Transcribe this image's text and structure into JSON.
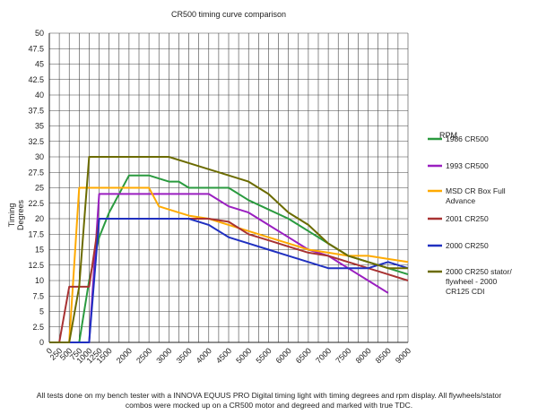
{
  "chart_data": {
    "type": "line",
    "title": "CR500 timing curve comparison",
    "xlabel": "RPM",
    "ylabel": "Timing Degrees",
    "xlim": [
      0,
      9000
    ],
    "ylim": [
      0,
      50
    ],
    "x": [
      0,
      250,
      500,
      750,
      1000,
      1250,
      1500,
      2000,
      2500,
      3000,
      3500,
      4000,
      4500,
      5000,
      5500,
      6000,
      6500,
      7000,
      7500,
      8000,
      8500,
      9000
    ],
    "x_tick_labels": [
      "0",
      "250",
      "500",
      "750",
      "1000",
      "1250",
      "1500",
      "2000",
      "2500",
      "3000",
      "3500",
      "4000",
      "4500",
      "5000",
      "5500",
      "6000",
      "6500",
      "7000",
      "7500",
      "8000",
      "8500",
      "9000"
    ],
    "y_ticks": [
      0,
      2.5,
      5,
      7.5,
      10,
      12.5,
      15,
      17.5,
      20,
      22.5,
      25,
      27.5,
      30,
      32.5,
      35,
      37.5,
      40,
      42.5,
      45,
      47.5,
      50
    ],
    "y_tick_labels": [
      "0",
      "2.5",
      "5",
      "7.5",
      "10",
      "12.5",
      "15",
      "17.5",
      "20",
      "22.5",
      "25",
      "27.5",
      "30",
      "32.5",
      "35",
      "37.5",
      "40",
      "42.5",
      "45",
      "47.5",
      "50"
    ],
    "grid": true,
    "legend_position": "right",
    "series": [
      {
        "name": "1986 CR500",
        "color": "#2a9a3f",
        "points": [
          [
            0,
            0
          ],
          [
            750,
            0
          ],
          [
            1000,
            10
          ],
          [
            1250,
            17
          ],
          [
            1500,
            21
          ],
          [
            2000,
            27
          ],
          [
            2500,
            27
          ],
          [
            3000,
            26
          ],
          [
            3250,
            26
          ],
          [
            3500,
            25
          ],
          [
            4000,
            25
          ],
          [
            4500,
            25
          ],
          [
            5000,
            23
          ],
          [
            5500,
            21.5
          ],
          [
            6000,
            20
          ],
          [
            6500,
            18
          ],
          [
            7000,
            16
          ],
          [
            7500,
            14
          ],
          [
            8000,
            13
          ],
          [
            8500,
            12
          ],
          [
            9000,
            11
          ]
        ]
      },
      {
        "name": "1993 CR500",
        "color": "#9a1fc0",
        "points": [
          [
            0,
            0
          ],
          [
            1000,
            0
          ],
          [
            1250,
            24
          ],
          [
            2000,
            24
          ],
          [
            2500,
            24
          ],
          [
            3000,
            24
          ],
          [
            3500,
            24
          ],
          [
            4000,
            24
          ],
          [
            4500,
            22
          ],
          [
            5000,
            21
          ],
          [
            5500,
            19
          ],
          [
            6000,
            17
          ],
          [
            6500,
            15
          ],
          [
            7000,
            14
          ],
          [
            7500,
            12
          ],
          [
            8000,
            10
          ],
          [
            8500,
            8
          ]
        ]
      },
      {
        "name": "MSD CR Box Full Advance",
        "color": "#ffaa00",
        "points": [
          [
            0,
            0
          ],
          [
            500,
            0
          ],
          [
            750,
            25
          ],
          [
            1000,
            25
          ],
          [
            1250,
            25
          ],
          [
            2000,
            25
          ],
          [
            2500,
            25
          ],
          [
            2750,
            22
          ],
          [
            3000,
            21.5
          ],
          [
            3500,
            20.5
          ],
          [
            4000,
            20
          ],
          [
            4500,
            19
          ],
          [
            5000,
            18
          ],
          [
            5500,
            17
          ],
          [
            6000,
            16
          ],
          [
            6500,
            15
          ],
          [
            7000,
            14.5
          ],
          [
            7500,
            14
          ],
          [
            8000,
            14
          ],
          [
            8500,
            13.5
          ],
          [
            9000,
            13
          ]
        ]
      },
      {
        "name": "2001 CR250",
        "color": "#a83232",
        "points": [
          [
            0,
            0
          ],
          [
            250,
            0
          ],
          [
            500,
            9
          ],
          [
            750,
            9
          ],
          [
            1000,
            9
          ],
          [
            1250,
            20
          ],
          [
            2000,
            20
          ],
          [
            2500,
            20
          ],
          [
            3000,
            20
          ],
          [
            3500,
            20
          ],
          [
            4000,
            20
          ],
          [
            4500,
            19.5
          ],
          [
            5000,
            17.5
          ],
          [
            5500,
            16.5
          ],
          [
            6000,
            15.5
          ],
          [
            6500,
            14.5
          ],
          [
            7000,
            14
          ],
          [
            7500,
            13
          ],
          [
            8000,
            12
          ],
          [
            8500,
            11
          ],
          [
            9000,
            10
          ]
        ]
      },
      {
        "name": "2000 CR250",
        "color": "#2030c0",
        "points": [
          [
            0,
            0
          ],
          [
            1000,
            0
          ],
          [
            1250,
            20
          ],
          [
            2000,
            20
          ],
          [
            2500,
            20
          ],
          [
            3000,
            20
          ],
          [
            3500,
            20
          ],
          [
            4000,
            19
          ],
          [
            4500,
            17
          ],
          [
            5000,
            16
          ],
          [
            5500,
            15
          ],
          [
            6000,
            14
          ],
          [
            6500,
            13
          ],
          [
            7000,
            12
          ],
          [
            7500,
            12
          ],
          [
            8000,
            12
          ],
          [
            8500,
            13
          ],
          [
            9000,
            12
          ]
        ]
      },
      {
        "name": "2000 CR250 stator/ flywheel - 2000 CR125 CDI",
        "color": "#6b6b00",
        "points": [
          [
            0,
            0
          ],
          [
            500,
            0
          ],
          [
            750,
            9
          ],
          [
            1000,
            30
          ],
          [
            1250,
            30
          ],
          [
            2000,
            30
          ],
          [
            2500,
            30
          ],
          [
            3000,
            30
          ],
          [
            3500,
            29
          ],
          [
            4000,
            28
          ],
          [
            4500,
            27
          ],
          [
            5000,
            26
          ],
          [
            5500,
            24
          ],
          [
            6000,
            21
          ],
          [
            6500,
            19
          ],
          [
            7000,
            16
          ],
          [
            7500,
            14
          ],
          [
            8000,
            13
          ],
          [
            8500,
            12
          ],
          [
            9000,
            12
          ]
        ]
      }
    ]
  },
  "footnote": "All tests done on my bench tester with a INNOVA EQUUS PRO Digital timing light with timing degrees and rpm display. All flywheels/stator combos were mocked up on a CR500 motor and degreed and marked with true TDC."
}
